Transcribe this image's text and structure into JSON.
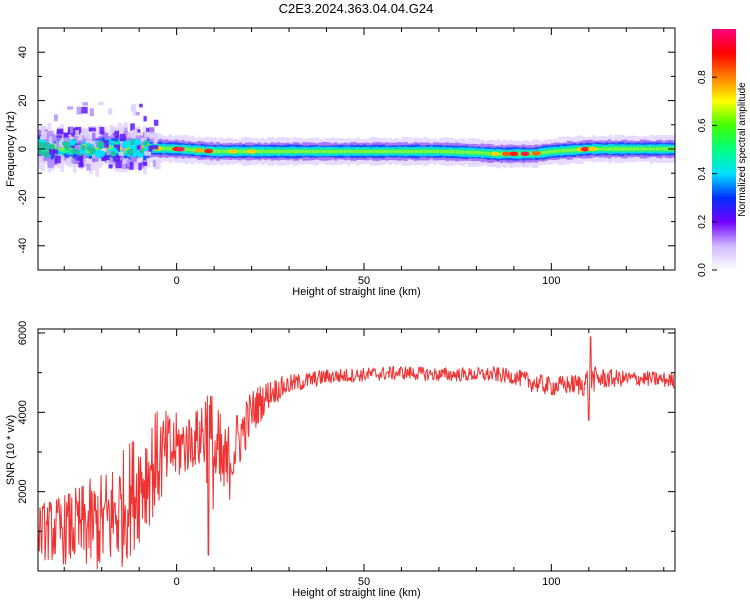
{
  "title": "C2E3.2024.363.04.04.G24",
  "chart_data": [
    {
      "type": "heatmap",
      "xlabel": "Height of straight line (km)",
      "ylabel": "Frequency (Hz)",
      "xlim": [
        -37,
        133
      ],
      "ylim": [
        -50,
        50
      ],
      "xticks": [
        0,
        50,
        100
      ],
      "yticks": [
        -40,
        -20,
        0,
        20,
        40
      ],
      "colorbar": {
        "label": "Normalized spectral amplitude",
        "range": [
          0,
          1
        ],
        "ticks": [
          "0.0",
          "0.2",
          "0.4",
          "0.6",
          "0.8"
        ],
        "colormap": [
          "#ffffff",
          "#cfb8ff",
          "#7000ff",
          "#0030ff",
          "#00e0ff",
          "#00ff80",
          "#40ff00",
          "#ffff00",
          "#ff8000",
          "#ff0000",
          "#ff0080"
        ]
      },
      "ridge": {
        "x": [
          -37,
          -30,
          -20,
          -10,
          0,
          5,
          10,
          20,
          30,
          40,
          50,
          60,
          70,
          80,
          85,
          90,
          95,
          100,
          110,
          120,
          133
        ],
        "freq": [
          1,
          0,
          0,
          0.5,
          0,
          -0.5,
          -1,
          -1,
          -1,
          -1,
          -1,
          -1,
          -1,
          -1.5,
          -2,
          -2,
          -2,
          -1,
          0,
          0,
          0
        ]
      }
    },
    {
      "type": "line",
      "xlabel": "Height of straight line (km)",
      "ylabel": "SNR (10 * v/v)",
      "xlim": [
        -37,
        133
      ],
      "ylim": [
        0,
        6100
      ],
      "xticks": [
        0,
        50,
        100
      ],
      "yticks": [
        2000,
        4000,
        6000
      ],
      "color": "#f03232",
      "envelope": {
        "x": [
          -37,
          -30,
          -20,
          -15,
          -10,
          -5,
          0,
          5,
          8,
          10,
          13,
          15,
          18,
          20,
          25,
          30,
          40,
          50,
          60,
          70,
          80,
          85,
          90,
          95,
          100,
          105,
          108,
          110,
          112,
          115,
          120,
          125,
          133
        ],
        "mean": [
          1000,
          1050,
          1200,
          1500,
          2200,
          2800,
          3100,
          3300,
          3600,
          2900,
          2500,
          3000,
          3600,
          4000,
          4500,
          4700,
          4900,
          4950,
          5000,
          4950,
          4950,
          4950,
          4900,
          4750,
          4650,
          4700,
          4700,
          4800,
          4850,
          4850,
          4850,
          4850,
          4800
        ],
        "spread": [
          700,
          900,
          1300,
          1500,
          1500,
          1300,
          900,
          700,
          1400,
          1500,
          1200,
          900,
          700,
          600,
          350,
          250,
          200,
          180,
          180,
          180,
          180,
          200,
          200,
          250,
          250,
          250,
          300,
          400,
          300,
          250,
          200,
          200,
          200
        ]
      },
      "annotations": [
        {
          "x": 8.5,
          "y": 6100
        },
        {
          "x": 8.5,
          "y": 400
        },
        {
          "x": 110.5,
          "y": 5900
        },
        {
          "x": 110,
          "y": 3800
        }
      ]
    }
  ]
}
